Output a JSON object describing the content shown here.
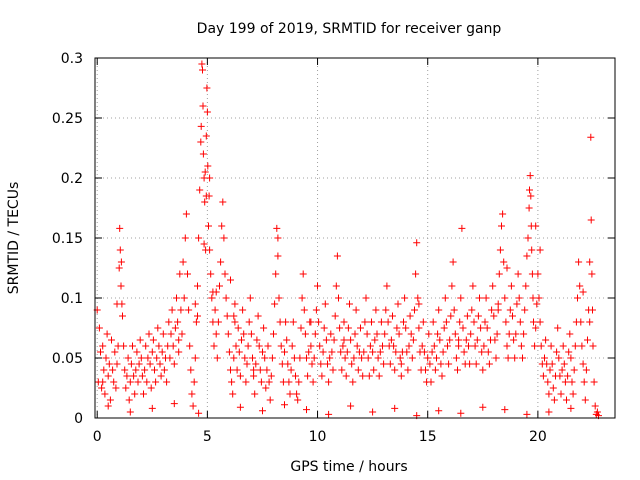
{
  "chart_data": {
    "type": "scatter",
    "title": "Day 199 of 2019, SRMTID for receiver ganp",
    "xlabel": "GPS time / hours",
    "ylabel": "SRMTID / TECUs",
    "xlim": [
      -0.1,
      23.5
    ],
    "ylim": [
      0,
      0.3
    ],
    "xticks": [
      0,
      5,
      10,
      15,
      20
    ],
    "xtick_labels": [
      "0",
      "5",
      "10",
      "15",
      "20"
    ],
    "yticks": [
      0,
      0.05,
      0.1,
      0.15,
      0.2,
      0.25,
      0.3
    ],
    "ytick_labels": [
      "0",
      "0.05",
      "0.1",
      "0.15",
      "0.2",
      "0.25",
      "0.3"
    ],
    "grid": true,
    "marker": "+",
    "marker_color": "#ff0000",
    "series": [
      {
        "name": "SRMTID",
        "x": [
          0.0,
          0.05,
          0.1,
          0.15,
          0.2,
          0.25,
          0.3,
          0.35,
          0.4,
          0.45,
          0.5,
          0.55,
          0.6,
          0.65,
          0.7,
          0.75,
          0.8,
          0.85,
          0.9,
          0.95,
          1.0,
          1.02,
          1.05,
          1.08,
          1.1,
          1.12,
          1.15,
          1.2,
          1.25,
          1.3,
          1.35,
          1.4,
          1.45,
          1.5,
          1.55,
          1.6,
          1.65,
          1.7,
          1.75,
          1.8,
          1.85,
          1.9,
          1.95,
          2.0,
          2.05,
          2.1,
          2.15,
          2.2,
          2.25,
          2.3,
          2.35,
          2.4,
          2.45,
          2.5,
          2.55,
          2.6,
          2.65,
          2.7,
          2.75,
          2.8,
          2.85,
          2.9,
          2.95,
          3.0,
          3.05,
          3.1,
          3.15,
          3.2,
          3.25,
          3.3,
          3.35,
          3.4,
          3.45,
          3.5,
          3.55,
          3.6,
          3.65,
          3.7,
          3.75,
          3.8,
          3.85,
          3.9,
          3.95,
          4.0,
          4.05,
          4.1,
          4.15,
          4.2,
          4.25,
          4.3,
          4.35,
          4.4,
          4.45,
          4.5,
          4.55,
          4.6,
          4.65,
          4.7,
          4.72,
          4.75,
          4.78,
          4.8,
          4.82,
          4.85,
          4.88,
          4.9,
          4.92,
          4.95,
          4.98,
          5.0,
          5.02,
          5.05,
          5.08,
          5.1,
          5.15,
          5.2,
          5.25,
          5.3,
          5.35,
          5.4,
          5.45,
          5.5,
          5.55,
          5.6,
          5.65,
          5.7,
          5.75,
          5.8,
          5.85,
          5.9,
          5.95,
          6.0,
          6.05,
          6.1,
          6.15,
          6.2,
          6.25,
          6.3,
          6.35,
          6.4,
          6.45,
          6.5,
          6.55,
          6.6,
          6.65,
          6.7,
          6.75,
          6.8,
          6.85,
          6.9,
          6.95,
          7.0,
          7.05,
          7.1,
          7.15,
          7.2,
          7.25,
          7.3,
          7.35,
          7.4,
          7.45,
          7.5,
          7.55,
          7.6,
          7.65,
          7.7,
          7.75,
          7.8,
          7.85,
          7.9,
          7.95,
          8.0,
          8.05,
          8.1,
          8.15,
          8.2,
          8.25,
          8.3,
          8.35,
          8.4,
          8.45,
          8.5,
          8.55,
          8.6,
          8.65,
          8.7,
          8.75,
          8.8,
          8.85,
          8.9,
          8.95,
          9.0,
          9.05,
          9.1,
          9.15,
          9.2,
          9.25,
          9.3,
          9.35,
          9.4,
          9.45,
          9.5,
          9.55,
          9.6,
          9.65,
          9.7,
          9.75,
          9.8,
          9.85,
          9.9,
          9.95,
          10.0,
          10.05,
          10.1,
          10.15,
          10.2,
          10.25,
          10.3,
          10.35,
          10.4,
          10.45,
          10.5,
          10.55,
          10.6,
          10.65,
          10.7,
          10.75,
          10.8,
          10.85,
          10.9,
          10.95,
          11.0,
          11.05,
          11.1,
          11.15,
          11.2,
          11.25,
          11.3,
          11.35,
          11.4,
          11.45,
          11.5,
          11.55,
          11.6,
          11.65,
          11.7,
          11.75,
          11.8,
          11.85,
          11.9,
          11.95,
          12.0,
          12.05,
          12.1,
          12.15,
          12.2,
          12.25,
          12.3,
          12.35,
          12.4,
          12.45,
          12.5,
          12.55,
          12.6,
          12.65,
          12.7,
          12.75,
          12.8,
          12.85,
          12.9,
          12.95,
          13.0,
          13.05,
          13.1,
          13.15,
          13.2,
          13.25,
          13.3,
          13.35,
          13.4,
          13.45,
          13.5,
          13.55,
          13.6,
          13.65,
          13.7,
          13.75,
          13.8,
          13.85,
          13.9,
          13.95,
          14.0,
          14.05,
          14.1,
          14.15,
          14.2,
          14.25,
          14.3,
          14.35,
          14.4,
          14.45,
          14.5,
          14.55,
          14.6,
          14.65,
          14.7,
          14.75,
          14.8,
          14.85,
          14.9,
          14.95,
          15.0,
          15.05,
          15.1,
          15.15,
          15.2,
          15.25,
          15.3,
          15.35,
          15.4,
          15.45,
          15.5,
          15.55,
          15.6,
          15.65,
          15.7,
          15.75,
          15.8,
          15.85,
          15.9,
          15.95,
          16.0,
          16.05,
          16.1,
          16.15,
          16.2,
          16.25,
          16.3,
          16.35,
          16.4,
          16.45,
          16.5,
          16.55,
          16.6,
          16.65,
          16.7,
          16.75,
          16.8,
          16.85,
          16.9,
          16.95,
          17.0,
          17.05,
          17.1,
          17.15,
          17.2,
          17.25,
          17.3,
          17.35,
          17.4,
          17.45,
          17.5,
          17.55,
          17.6,
          17.65,
          17.7,
          17.75,
          17.8,
          17.85,
          17.9,
          17.95,
          18.0,
          18.05,
          18.1,
          18.15,
          18.2,
          18.25,
          18.3,
          18.35,
          18.4,
          18.45,
          18.5,
          18.55,
          18.6,
          18.65,
          18.7,
          18.75,
          18.8,
          18.85,
          18.9,
          18.95,
          19.0,
          19.05,
          19.1,
          19.15,
          19.2,
          19.25,
          19.3,
          19.35,
          19.4,
          19.45,
          19.5,
          19.55,
          19.6,
          19.62,
          19.65,
          19.68,
          19.7,
          19.72,
          19.75,
          19.78,
          19.8,
          19.85,
          19.9,
          19.95,
          20.0,
          20.05,
          20.1,
          20.15,
          20.2,
          20.25,
          20.3,
          20.35,
          20.4,
          20.45,
          20.5,
          20.55,
          20.6,
          20.65,
          20.7,
          20.75,
          20.8,
          20.85,
          20.9,
          20.95,
          21.0,
          21.05,
          21.1,
          21.15,
          21.2,
          21.25,
          21.3,
          21.35,
          21.4,
          21.45,
          21.5,
          21.55,
          21.6,
          21.65,
          21.7,
          21.75,
          21.8,
          21.85,
          21.9,
          21.95,
          22.0,
          22.05,
          22.1,
          22.15,
          22.2,
          22.25,
          22.3,
          22.35,
          22.4,
          22.42,
          22.45,
          22.48,
          22.5,
          22.55,
          22.6,
          22.65,
          22.7,
          22.75,
          0.5,
          1.5,
          2.5,
          3.5,
          4.6,
          6.5,
          7.5,
          8.5,
          9.5,
          10.5,
          11.5,
          12.5,
          13.5,
          14.5,
          15.5,
          16.5,
          17.5,
          18.5,
          19.5,
          20.5,
          21.5,
          0.9,
          3.7,
          4.45,
          4.55,
          5.25,
          6.25,
          8.2,
          9.7,
          11.2,
          13.8,
          14.6,
          16.4,
          18.2,
          18.6,
          19.9,
          20.1,
          22.05,
          22.35,
          0.25,
          4.85,
          4.95,
          5.1,
          5.4,
          6.05,
          6.2,
          7.1
        ],
        "y": [
          0.09,
          0.03,
          0.075,
          0.055,
          0.025,
          0.06,
          0.04,
          0.02,
          0.05,
          0.07,
          0.035,
          0.045,
          0.015,
          0.065,
          0.04,
          0.03,
          0.055,
          0.025,
          0.045,
          0.06,
          0.125,
          0.158,
          0.14,
          0.11,
          0.13,
          0.095,
          0.085,
          0.06,
          0.04,
          0.025,
          0.035,
          0.05,
          0.015,
          0.03,
          0.045,
          0.06,
          0.035,
          0.02,
          0.04,
          0.055,
          0.03,
          0.045,
          0.065,
          0.05,
          0.035,
          0.02,
          0.04,
          0.06,
          0.03,
          0.05,
          0.07,
          0.045,
          0.025,
          0.055,
          0.065,
          0.04,
          0.03,
          0.05,
          0.075,
          0.06,
          0.045,
          0.035,
          0.055,
          0.07,
          0.04,
          0.05,
          0.03,
          0.06,
          0.08,
          0.05,
          0.07,
          0.09,
          0.06,
          0.045,
          0.075,
          0.1,
          0.08,
          0.055,
          0.12,
          0.09,
          0.07,
          0.13,
          0.1,
          0.15,
          0.17,
          0.12,
          0.09,
          0.06,
          0.04,
          0.02,
          0.01,
          0.03,
          0.05,
          0.08,
          0.11,
          0.15,
          0.19,
          0.23,
          0.243,
          0.295,
          0.29,
          0.26,
          0.22,
          0.2,
          0.18,
          0.205,
          0.14,
          0.235,
          0.275,
          0.255,
          0.21,
          0.16,
          0.185,
          0.14,
          0.12,
          0.1,
          0.08,
          0.06,
          0.09,
          0.07,
          0.05,
          0.08,
          0.11,
          0.13,
          0.16,
          0.18,
          0.15,
          0.12,
          0.1,
          0.085,
          0.07,
          0.055,
          0.04,
          0.03,
          0.02,
          0.05,
          0.08,
          0.06,
          0.04,
          0.075,
          0.055,
          0.035,
          0.065,
          0.09,
          0.07,
          0.05,
          0.03,
          0.045,
          0.06,
          0.08,
          0.1,
          0.07,
          0.05,
          0.035,
          0.02,
          0.045,
          0.065,
          0.085,
          0.06,
          0.04,
          0.03,
          0.055,
          0.075,
          0.05,
          0.025,
          0.04,
          0.06,
          0.03,
          0.015,
          0.035,
          0.05,
          0.07,
          0.095,
          0.12,
          0.158,
          0.135,
          0.1,
          0.08,
          0.06,
          0.045,
          0.03,
          0.055,
          0.08,
          0.065,
          0.045,
          0.03,
          0.02,
          0.04,
          0.06,
          0.08,
          0.05,
          0.035,
          0.02,
          0.015,
          0.03,
          0.05,
          0.075,
          0.1,
          0.12,
          0.09,
          0.07,
          0.05,
          0.035,
          0.055,
          0.08,
          0.06,
          0.045,
          0.03,
          0.05,
          0.07,
          0.09,
          0.11,
          0.08,
          0.06,
          0.045,
          0.035,
          0.055,
          0.075,
          0.095,
          0.065,
          0.045,
          0.03,
          0.05,
          0.07,
          0.055,
          0.04,
          0.065,
          0.085,
          0.11,
          0.135,
          0.1,
          0.075,
          0.055,
          0.04,
          0.06,
          0.08,
          0.05,
          0.035,
          0.055,
          0.075,
          0.095,
          0.065,
          0.045,
          0.03,
          0.05,
          0.07,
          0.09,
          0.06,
          0.04,
          0.055,
          0.075,
          0.05,
          0.035,
          0.055,
          0.08,
          0.1,
          0.07,
          0.05,
          0.035,
          0.06,
          0.08,
          0.055,
          0.04,
          0.065,
          0.09,
          0.07,
          0.05,
          0.035,
          0.055,
          0.08,
          0.06,
          0.045,
          0.07,
          0.09,
          0.11,
          0.08,
          0.06,
          0.045,
          0.065,
          0.085,
          0.06,
          0.04,
          0.055,
          0.075,
          0.095,
          0.07,
          0.05,
          0.035,
          0.055,
          0.08,
          0.1,
          0.075,
          0.055,
          0.04,
          0.06,
          0.085,
          0.07,
          0.05,
          0.065,
          0.09,
          0.12,
          0.146,
          0.1,
          0.075,
          0.055,
          0.04,
          0.06,
          0.08,
          0.055,
          0.04,
          0.03,
          0.05,
          0.07,
          0.045,
          0.03,
          0.055,
          0.08,
          0.06,
          0.04,
          0.05,
          0.07,
          0.09,
          0.065,
          0.045,
          0.035,
          0.055,
          0.075,
          0.1,
          0.08,
          0.06,
          0.045,
          0.065,
          0.085,
          0.11,
          0.13,
          0.09,
          0.07,
          0.05,
          0.04,
          0.06,
          0.08,
          0.1,
          0.158,
          0.075,
          0.055,
          0.045,
          0.065,
          0.085,
          0.06,
          0.045,
          0.07,
          0.09,
          0.11,
          0.08,
          0.06,
          0.045,
          0.065,
          0.085,
          0.1,
          0.075,
          0.055,
          0.04,
          0.06,
          0.08,
          0.1,
          0.075,
          0.055,
          0.045,
          0.065,
          0.09,
          0.11,
          0.085,
          0.065,
          0.05,
          0.07,
          0.095,
          0.12,
          0.14,
          0.16,
          0.17,
          0.13,
          0.1,
          0.08,
          0.06,
          0.05,
          0.07,
          0.09,
          0.11,
          0.085,
          0.065,
          0.05,
          0.07,
          0.095,
          0.12,
          0.1,
          0.08,
          0.06,
          0.05,
          0.07,
          0.09,
          0.11,
          0.135,
          0.15,
          0.175,
          0.19,
          0.202,
          0.185,
          0.16,
          0.14,
          0.12,
          0.1,
          0.08,
          0.06,
          0.075,
          0.095,
          0.12,
          0.1,
          0.08,
          0.06,
          0.045,
          0.035,
          0.05,
          0.065,
          0.045,
          0.03,
          0.02,
          0.04,
          0.06,
          0.045,
          0.025,
          0.015,
          0.035,
          0.055,
          0.075,
          0.05,
          0.035,
          0.02,
          0.04,
          0.06,
          0.045,
          0.03,
          0.015,
          0.035,
          0.055,
          0.07,
          0.05,
          0.03,
          0.02,
          0.04,
          0.06,
          0.08,
          0.1,
          0.13,
          0.11,
          0.08,
          0.06,
          0.045,
          0.03,
          0.015,
          0.04,
          0.065,
          0.09,
          0.13,
          0.234,
          0.165,
          0.12,
          0.09,
          0.06,
          0.03,
          0.01,
          0.003,
          0.005,
          0.002,
          0.01,
          0.005,
          0.008,
          0.012,
          0.004,
          0.009,
          0.006,
          0.011,
          0.007,
          0.003,
          0.01,
          0.005,
          0.008,
          0.002,
          0.006,
          0.004,
          0.009,
          0.007,
          0.003,
          0.005,
          0.008,
          0.095,
          0.065,
          0.095,
          0.085,
          0.105,
          0.095,
          0.15,
          0.08,
          0.065,
          0.045,
          0.095,
          0.065,
          0.09,
          0.125,
          0.16,
          0.14,
          0.105,
          0.08,
          0.03,
          0.145,
          0.185,
          0.2,
          0.105,
          0.115,
          0.085,
          0.04
        ]
      }
    ]
  }
}
